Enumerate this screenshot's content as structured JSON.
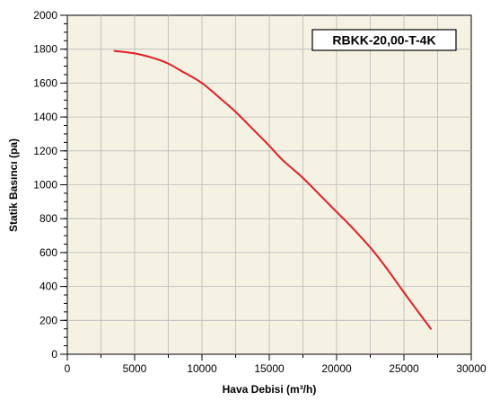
{
  "chart_data": {
    "type": "line",
    "title": "",
    "xlabel": "Hava Debisi (m³/h)",
    "ylabel": "Statik Basıncı (pa)",
    "xlim": [
      0,
      30000
    ],
    "ylim": [
      0,
      2000
    ],
    "x_ticks": [
      0,
      5000,
      10000,
      15000,
      20000,
      25000,
      30000
    ],
    "y_ticks": [
      0,
      200,
      400,
      600,
      800,
      1000,
      1200,
      1400,
      1600,
      1800,
      2000
    ],
    "x_tick_labels": [
      "0",
      "5000",
      "10000",
      "15000",
      "20000",
      "25000",
      "30000"
    ],
    "y_tick_labels": [
      "0",
      "200",
      "400",
      "600",
      "800",
      "1000",
      "1200",
      "1400",
      "1600",
      "1800",
      "2000"
    ],
    "grid": true,
    "legend_position": "top-right",
    "series": [
      {
        "name": "RBKK-20,00-T-4K",
        "color": "#e31e24",
        "x": [
          3500,
          5000,
          6500,
          7500,
          8500,
          10000,
          11500,
          12500,
          14000,
          15000,
          16000,
          17500,
          19000,
          20000,
          21000,
          22500,
          23500,
          24500,
          25500,
          27000
        ],
        "y": [
          1790,
          1775,
          1745,
          1715,
          1670,
          1600,
          1500,
          1430,
          1310,
          1230,
          1145,
          1040,
          920,
          840,
          760,
          630,
          530,
          420,
          310,
          150
        ]
      }
    ]
  },
  "colors": {
    "plot_background": "#f5f2e4",
    "grid": "#b8b8b8",
    "axis": "#000000"
  }
}
